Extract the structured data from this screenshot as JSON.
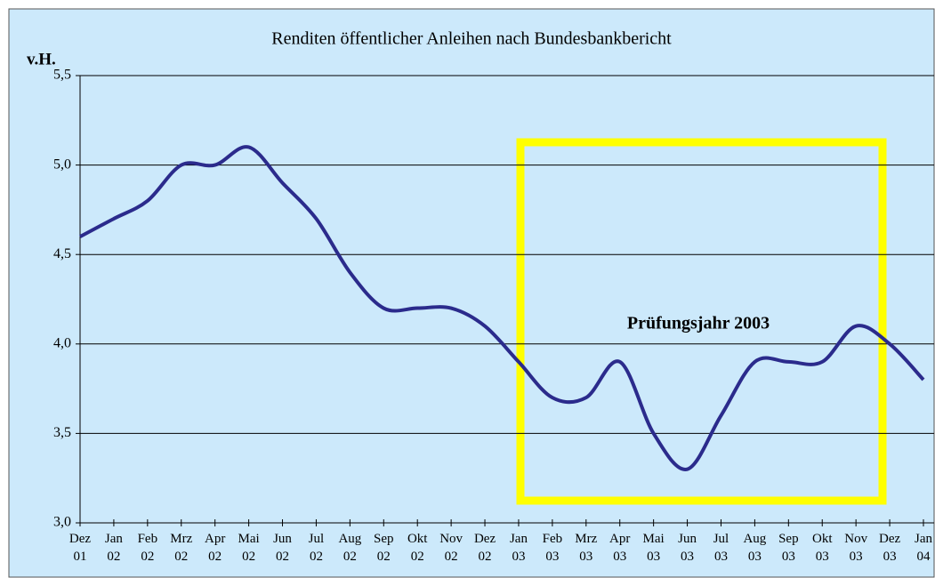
{
  "chart_data": {
    "type": "line",
    "title": "Renditen öffentlicher Anleihen nach Bundesbankbericht",
    "ylabel": "v.H.",
    "annotation": "Prüfungsjahr 2003",
    "categories": [
      "Dez 01",
      "Jan 02",
      "Feb 02",
      "Mrz 02",
      "Apr 02",
      "Mai 02",
      "Jun 02",
      "Jul 02",
      "Aug 02",
      "Sep 02",
      "Okt 02",
      "Nov 02",
      "Dez 02",
      "Jan 03",
      "Feb 03",
      "Mrz 03",
      "Apr 03",
      "Mai 03",
      "Jun 03",
      "Jul 03",
      "Aug 03",
      "Sep 03",
      "Okt 03",
      "Nov 03",
      "Dez 03",
      "Jan 04"
    ],
    "values": [
      4.6,
      4.7,
      4.8,
      5.0,
      5.0,
      5.1,
      4.9,
      4.7,
      4.4,
      4.2,
      4.2,
      4.2,
      4.1,
      3.9,
      3.7,
      3.7,
      3.9,
      3.5,
      3.3,
      3.6,
      3.9,
      3.9,
      3.9,
      4.1,
      4.0,
      3.8
    ],
    "color": "#2b2b8c",
    "ylim": [
      3.0,
      5.5
    ],
    "yticks": [
      {
        "value": 3.0,
        "label": "3,0"
      },
      {
        "value": 3.5,
        "label": "3,5"
      },
      {
        "value": 4.0,
        "label": "4,0"
      },
      {
        "value": 4.5,
        "label": "4,5"
      },
      {
        "value": 5.0,
        "label": "5,0"
      },
      {
        "value": 5.5,
        "label": "5,5"
      }
    ],
    "grid": true
  }
}
